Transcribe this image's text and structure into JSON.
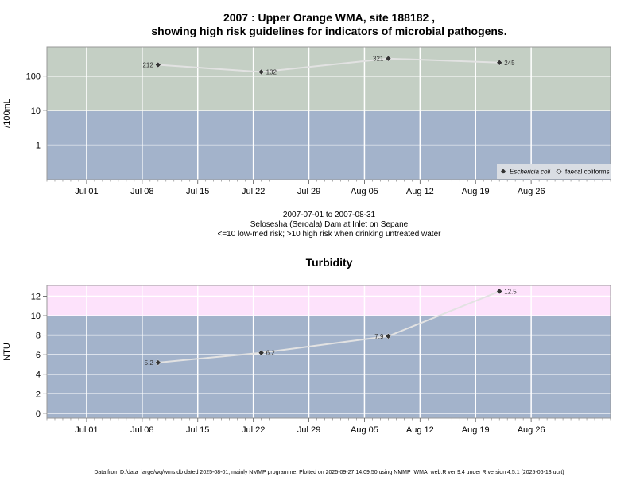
{
  "footer": "Data from D:/data_large/wq/wms.db dated 2025-08-01, mainly NMMP programme. Plotted on 2025-09-27 14:09:50 using NMMP_WMA_web.R ver 9.4 under R version 4.5.1 (2025-06-13 ucrt)",
  "colors": {
    "high_band_top": "#c4cfc4",
    "low_band_top": "#a3b3cb",
    "high_band_bottom": "#fde2fb",
    "low_band_bottom": "#a3b3cb",
    "grid": "#ffffff",
    "line": "#e2e2e2",
    "marker": "#333333"
  },
  "chart_data": [
    {
      "type": "line",
      "title_line1": "2007 : Upper Orange WMA, site 188182 ,",
      "title_line2": "showing high risk guidelines for indicators of microbial pathogens.",
      "ylabel": "/100mL",
      "y_scale": "log",
      "ylim": [
        0.1,
        700
      ],
      "xlim": [
        "2007-06-26",
        "2007-09-05"
      ],
      "x_ticks": [
        "2007-07-01",
        "2007-07-08",
        "2007-07-15",
        "2007-07-22",
        "2007-07-29",
        "2007-08-05",
        "2007-08-12",
        "2007-08-19",
        "2007-08-26"
      ],
      "x_tick_labels": [
        "Jul 01",
        "Jul 08",
        "Jul 15",
        "Jul 22",
        "Jul 29",
        "Aug 05",
        "Aug 12",
        "Aug 19",
        "Aug 26"
      ],
      "y_ticks": [
        1,
        10,
        100
      ],
      "y_tick_labels": [
        "1",
        "10",
        "100"
      ],
      "threshold": 10,
      "grid": true,
      "series": [
        {
          "name": "Eschericia coli",
          "x": [
            "2007-07-10",
            "2007-07-23",
            "2007-08-08",
            "2007-08-22"
          ],
          "y": [
            212,
            132,
            321,
            245
          ],
          "labels": [
            "212",
            "132",
            "321",
            "245"
          ]
        }
      ],
      "legend": {
        "placement": "bottom-right",
        "entries": [
          "Eschericia coli",
          "faecal coliforms"
        ]
      },
      "subtitle_lines": [
        "2007-07-01 to 2007-08-31",
        "Selosesha (Seroala) Dam at Inlet on Sepane",
        "<=10 low-med risk; >10 high risk when drinking untreated water"
      ]
    },
    {
      "type": "line",
      "title": "Turbidity",
      "ylabel": "NTU",
      "y_scale": "linear",
      "ylim": [
        -0.5,
        13.1
      ],
      "xlim": [
        "2007-06-26",
        "2007-09-05"
      ],
      "x_ticks": [
        "2007-07-01",
        "2007-07-08",
        "2007-07-15",
        "2007-07-22",
        "2007-07-29",
        "2007-08-05",
        "2007-08-12",
        "2007-08-19",
        "2007-08-26"
      ],
      "x_tick_labels": [
        "Jul 01",
        "Jul 08",
        "Jul 15",
        "Jul 22",
        "Jul 29",
        "Aug 05",
        "Aug 12",
        "Aug 19",
        "Aug 26"
      ],
      "y_ticks": [
        0,
        2,
        4,
        6,
        8,
        10,
        12
      ],
      "y_tick_labels": [
        "0",
        "2",
        "4",
        "6",
        "8",
        "10",
        "12"
      ],
      "threshold": 10,
      "grid": true,
      "series": [
        {
          "x": [
            "2007-07-10",
            "2007-07-23",
            "2007-08-08",
            "2007-08-22"
          ],
          "y": [
            5.2,
            6.2,
            7.9,
            12.5
          ],
          "labels": [
            "5.2",
            "6.2",
            "7.9",
            "12.5"
          ]
        }
      ]
    }
  ]
}
